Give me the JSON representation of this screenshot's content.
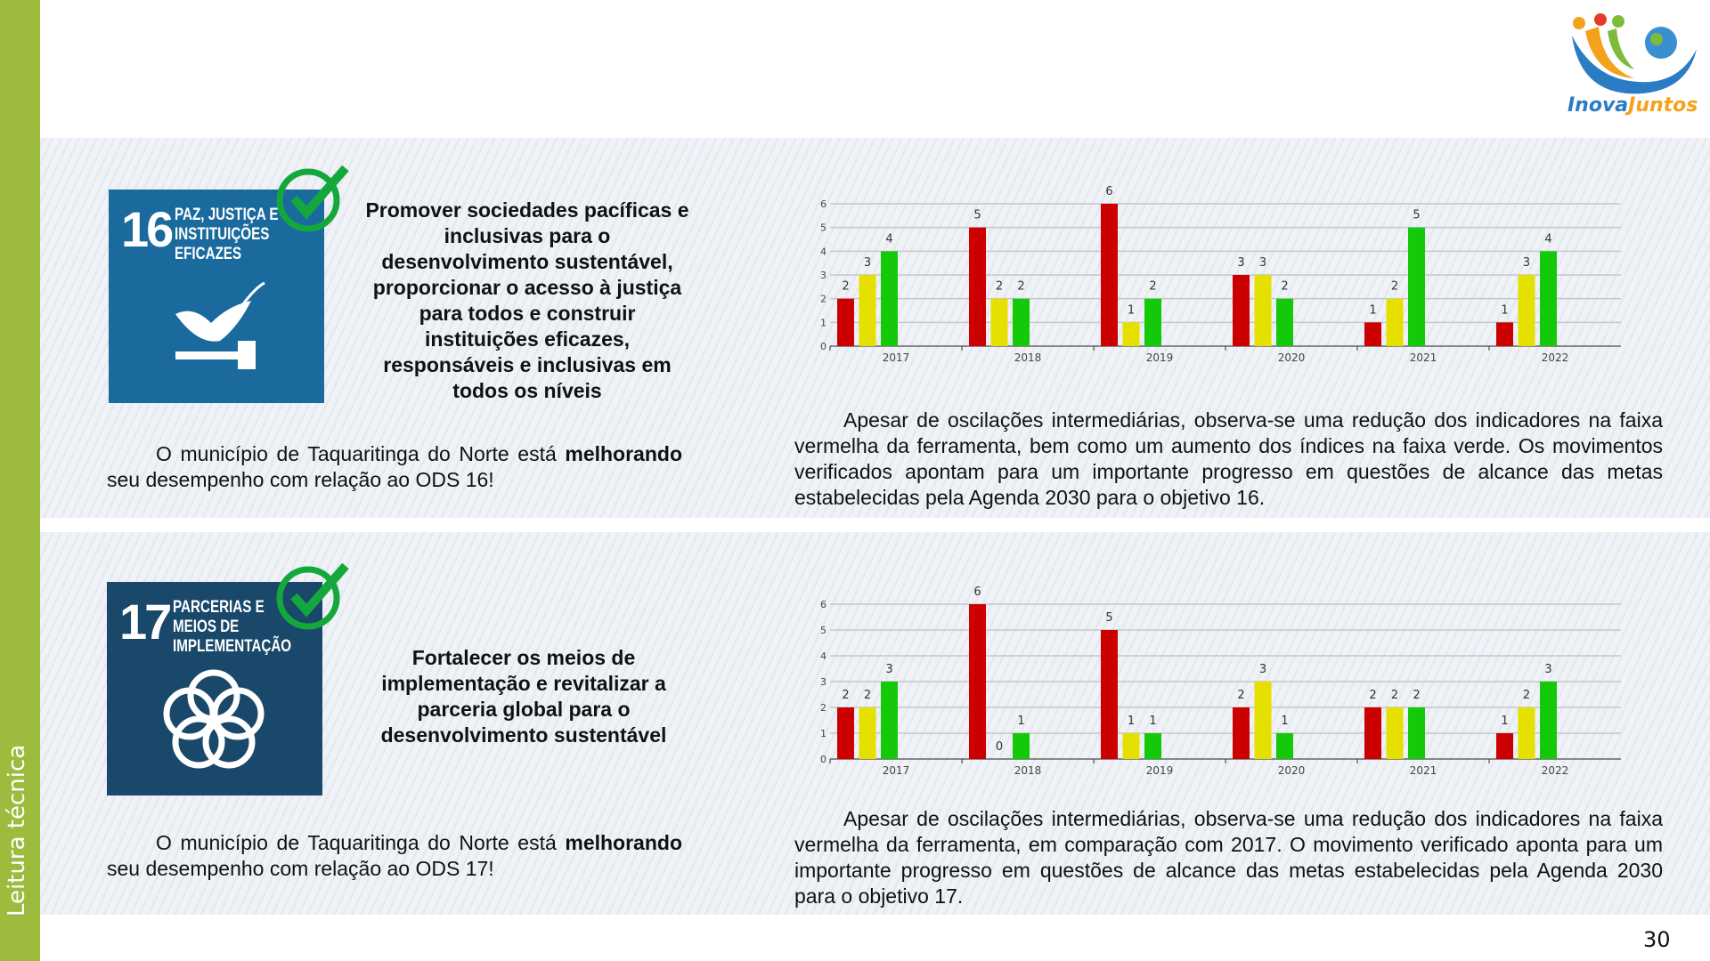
{
  "sidebar": {
    "label": "Leitura técnica"
  },
  "logo": {
    "text_a": "Inova",
    "text_b": "Juntos"
  },
  "page_number": "30",
  "colors": {
    "red": "#cc0000",
    "yellow": "#e6e000",
    "green": "#14c80a",
    "sidebar": "#9dbb3c",
    "sdg16": "#1a6a9e",
    "sdg17": "#19486a",
    "check": "#14a83c"
  },
  "sections": [
    {
      "tile": {
        "number": "16",
        "label": "PAZ, JUSTIÇA E INSTITUIÇÕES EFICAZES"
      },
      "title": "Promover sociedades pacíficas e inclusivas para o desenvolvimento sustentável, proporcionar o acesso à justiça para todos e construir instituições eficazes, responsáveis e inclusivas em todos os níveis",
      "status": {
        "pre": "O município de Taquaritinga do Norte está",
        "bold": "melhorando",
        "post": "seu desempenho com relação ao ODS 16!"
      },
      "analysis": "Apesar de oscilações intermediárias, observa-se uma redução dos indicadores na faixa vermelha da ferramenta, bem como um aumento dos índices na faixa verde. Os movimentos verificados apontam para um importante progresso em questões de alcance das metas estabelecidas pela Agenda 2030 para o objetivo 16."
    },
    {
      "tile": {
        "number": "17",
        "label": "PARCERIAS E MEIOS DE IMPLEMENTAÇÃO"
      },
      "title": "Fortalecer os meios de implementação e revitalizar a parceria global para o desenvolvimento sustentável",
      "status": {
        "pre": "O município de Taquaritinga do Norte está",
        "bold": "melhorando",
        "post": "seu desempenho com relação ao ODS 17!"
      },
      "analysis": "Apesar de oscilações intermediárias, observa-se uma redução dos indicadores na faixa vermelha da ferramenta, em comparação com 2017. O movimento verificado aponta para um importante progresso em questões de alcance das metas estabelecidas pela Agenda 2030 para o objetivo 17."
    }
  ],
  "chart_data": [
    {
      "type": "bar",
      "title": "",
      "xlabel": "",
      "ylabel": "",
      "ylim": [
        0,
        6
      ],
      "yticks": [
        0,
        1,
        2,
        3,
        4,
        5,
        6
      ],
      "grid": true,
      "categories": [
        "2017",
        "2018",
        "2019",
        "2020",
        "2021",
        "2022"
      ],
      "series": [
        {
          "name": "vermelho",
          "color": "#cc0000",
          "values": [
            2,
            5,
            6,
            3,
            1,
            1
          ]
        },
        {
          "name": "amarelo",
          "color": "#e6e000",
          "values": [
            3,
            2,
            1,
            3,
            2,
            3
          ]
        },
        {
          "name": "verde",
          "color": "#14c80a",
          "values": [
            4,
            2,
            2,
            2,
            5,
            4
          ]
        }
      ]
    },
    {
      "type": "bar",
      "title": "",
      "xlabel": "",
      "ylabel": "",
      "ylim": [
        0,
        6
      ],
      "yticks": [
        0,
        1,
        2,
        3,
        4,
        5,
        6
      ],
      "grid": true,
      "categories": [
        "2017",
        "2018",
        "2019",
        "2020",
        "2021",
        "2022"
      ],
      "series": [
        {
          "name": "vermelho",
          "color": "#cc0000",
          "values": [
            2,
            6,
            5,
            2,
            2,
            1
          ]
        },
        {
          "name": "amarelo",
          "color": "#e6e000",
          "values": [
            2,
            0,
            1,
            3,
            2,
            2
          ]
        },
        {
          "name": "verde",
          "color": "#14c80a",
          "values": [
            3,
            1,
            1,
            1,
            2,
            3
          ]
        }
      ]
    }
  ]
}
